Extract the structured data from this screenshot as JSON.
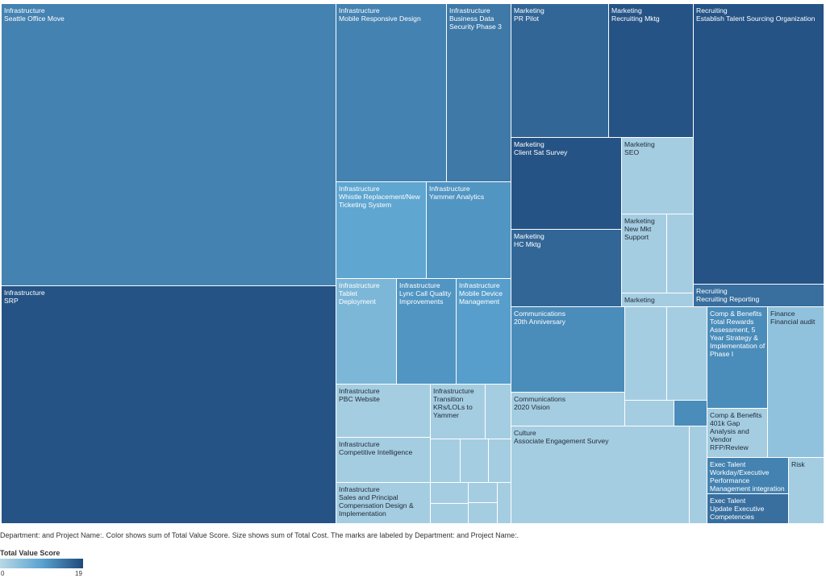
{
  "chart_data": {
    "type": "treemap",
    "size_measure": "Total Cost",
    "color_measure": "Total Value Score",
    "color_range": [
      0,
      19
    ],
    "colors": {
      "low": "#b9d8e6",
      "mid": "#5aa3d0",
      "high": "#1f4a7c"
    },
    "tiles": [
      {
        "department": "Infrastructure",
        "project": "Seattle Office Move",
        "value_score": 13
      },
      {
        "department": "Infrastructure",
        "project": "SRP",
        "value_score": 18
      },
      {
        "department": "Infrastructure",
        "project": "Mobile Responsive Design",
        "value_score": 13
      },
      {
        "department": "Infrastructure",
        "project": "Business Data Security Phase 3",
        "value_score": 14
      },
      {
        "department": "Infrastructure",
        "project": "Whistle Replacement/New Ticketing System",
        "value_score": 9
      },
      {
        "department": "Infrastructure",
        "project": "Yammer Analytics",
        "value_score": 11
      },
      {
        "department": "Infrastructure",
        "project": "Tablet Deployment",
        "value_score": 6
      },
      {
        "department": "Infrastructure",
        "project": "Lync Call Quality Improvements",
        "value_score": 11
      },
      {
        "department": "Infrastructure",
        "project": "Mobile Device Management",
        "value_score": 10
      },
      {
        "department": "Infrastructure",
        "project": "PBC Website",
        "value_score": 2
      },
      {
        "department": "Infrastructure",
        "project": "Transition KRs/LOLs to Yammer",
        "value_score": 2
      },
      {
        "department": "Infrastructure",
        "project": "Competitive Intelligence",
        "value_score": 2
      },
      {
        "department": "Infrastructure",
        "project": "Sales and Principal Compensation Design & Implementation",
        "value_score": 2
      },
      {
        "department": "Marketing",
        "project": "PR Pilot",
        "value_score": 16
      },
      {
        "department": "Marketing",
        "project": "Recruiting Mktg",
        "value_score": 18
      },
      {
        "department": "Marketing",
        "project": "Client Sat Survey",
        "value_score": 18
      },
      {
        "department": "Marketing",
        "project": "SEO",
        "value_score": 2
      },
      {
        "department": "Marketing",
        "project": "HC Mktg",
        "value_score": 16
      },
      {
        "department": "Marketing",
        "project": "New Mkt Support",
        "value_score": 2
      },
      {
        "department": "Marketing",
        "project": "",
        "value_score": 2
      },
      {
        "department": "Recruiting",
        "project": "Establish Talent Sourcing Organization",
        "value_score": 18
      },
      {
        "department": "Recruiting",
        "project": "Recruiting Reporting",
        "value_score": 15
      },
      {
        "department": "Communications",
        "project": "20th Anniversary",
        "value_score": 12
      },
      {
        "department": "Communications",
        "project": "2020 Vision",
        "value_score": 2
      },
      {
        "department": "Culture",
        "project": "Associate Engagement Survey",
        "value_score": 2
      },
      {
        "department": "Comp & Benefits",
        "project": "Total Rewards Assessment, 5 Year Strategy & Implementation of Phase I",
        "value_score": 12
      },
      {
        "department": "Comp & Benefits",
        "project": "401k Gap Analysis and Vendor RFP/Review",
        "value_score": 2
      },
      {
        "department": "Finance",
        "project": "Financial audit",
        "value_score": 4
      },
      {
        "department": "Exec Talent",
        "project": "Workday/Executive Performance Management integration",
        "value_score": 13
      },
      {
        "department": "Exec Talent",
        "project": "Update Executive Competencies",
        "value_score": 15
      },
      {
        "department": "Risk",
        "project": "",
        "value_score": 2
      }
    ],
    "unlabeled_tiles": [
      2,
      2,
      2,
      2,
      2,
      2,
      2,
      2,
      2,
      2,
      2,
      2,
      2,
      12,
      2,
      2
    ]
  },
  "caption": "Department: and Project Name:.  Color shows sum of Total Value Score.  Size shows sum of Total Cost.  The marks are labeled by Department: and Project Name:.",
  "legend": {
    "title": "Total Value Score",
    "min_label": "0",
    "max_label": "19"
  }
}
